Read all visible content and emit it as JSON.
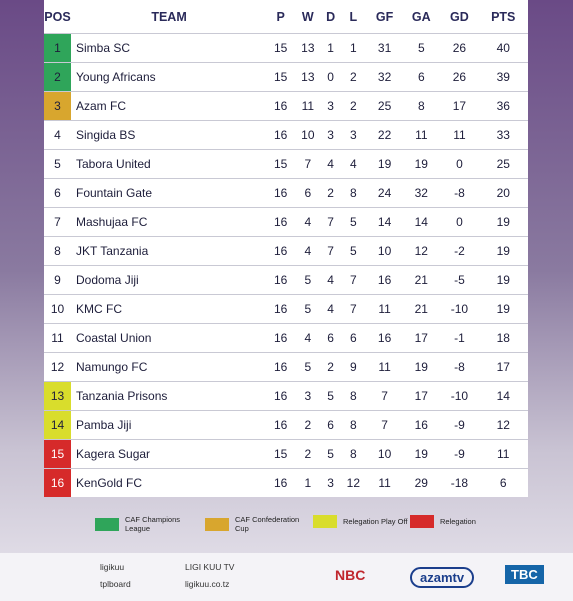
{
  "table": {
    "header": [
      "POS",
      "TEAM",
      "P",
      "W",
      "D",
      "L",
      "GF",
      "GA",
      "GD",
      "PTS"
    ],
    "rows": [
      [
        "1",
        "Simba SC",
        "15",
        "13",
        "1",
        "1",
        "31",
        "5",
        "26",
        "40"
      ],
      [
        "2",
        "Young Africans",
        "15",
        "13",
        "0",
        "2",
        "32",
        "6",
        "26",
        "39"
      ],
      [
        "3",
        "Azam FC",
        "16",
        "11",
        "3",
        "2",
        "25",
        "8",
        "17",
        "36"
      ],
      [
        "4",
        "Singida BS",
        "16",
        "10",
        "3",
        "3",
        "22",
        "11",
        "11",
        "33"
      ],
      [
        "5",
        "Tabora United",
        "15",
        "7",
        "4",
        "4",
        "19",
        "19",
        "0",
        "25"
      ],
      [
        "6",
        "Fountain Gate",
        "16",
        "6",
        "2",
        "8",
        "24",
        "32",
        "-8",
        "20"
      ],
      [
        "7",
        "Mashujaa FC",
        "16",
        "4",
        "7",
        "5",
        "14",
        "14",
        "0",
        "19"
      ],
      [
        "8",
        "JKT Tanzania",
        "16",
        "4",
        "7",
        "5",
        "10",
        "12",
        "-2",
        "19"
      ],
      [
        "9",
        "Dodoma Jiji",
        "16",
        "5",
        "4",
        "7",
        "16",
        "21",
        "-5",
        "19"
      ],
      [
        "10",
        "KMC FC",
        "16",
        "5",
        "4",
        "7",
        "11",
        "21",
        "-10",
        "19"
      ],
      [
        "11",
        "Coastal Union",
        "16",
        "4",
        "6",
        "6",
        "16",
        "17",
        "-1",
        "18"
      ],
      [
        "12",
        "Namungo FC",
        "16",
        "5",
        "2",
        "9",
        "11",
        "19",
        "-8",
        "17"
      ],
      [
        "13",
        "Tanzania Prisons",
        "16",
        "3",
        "5",
        "8",
        "7",
        "17",
        "-10",
        "14"
      ],
      [
        "14",
        "Pamba Jiji",
        "16",
        "2",
        "6",
        "8",
        "7",
        "16",
        "-9",
        "12"
      ],
      [
        "15",
        "Kagera Sugar",
        "15",
        "2",
        "5",
        "8",
        "10",
        "19",
        "-9",
        "11"
      ],
      [
        "16",
        "KenGold FC",
        "16",
        "1",
        "3",
        "12",
        "11",
        "29",
        "-18",
        "6"
      ]
    ]
  },
  "legend": [
    {
      "label": "CAF Champions League",
      "color": "#2fa55a"
    },
    {
      "label": "CAF Confederation Cup",
      "color": "#d8a62e"
    },
    {
      "label": "Relegation Play Off",
      "color": "#d9dd2c"
    },
    {
      "label": "Relegation",
      "color": "#d62a2a"
    }
  ],
  "footer": {
    "instagram": "ligikuu",
    "x": "tplboard",
    "youtube": "LIGI KUU TV",
    "website": "ligikuu.co.tz",
    "sponsors": [
      "NBC",
      "azamtv",
      "TBC"
    ]
  }
}
